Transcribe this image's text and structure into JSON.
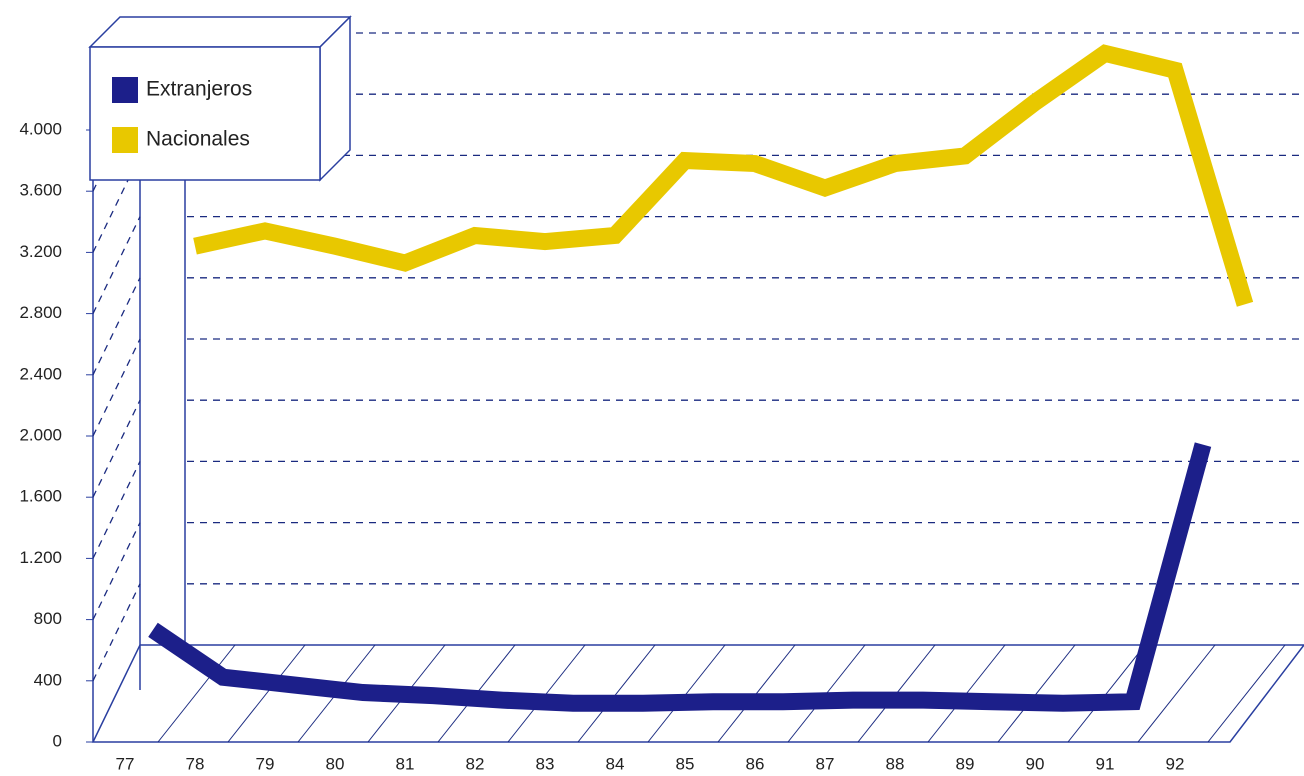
{
  "chart_data": {
    "type": "line",
    "categories": [
      "77",
      "78",
      "79",
      "80",
      "81",
      "82",
      "83",
      "84",
      "85",
      "86",
      "87",
      "88",
      "89",
      "90",
      "91",
      "92"
    ],
    "series": [
      {
        "name": "Extranjeros",
        "color": "#1c1f8a",
        "values": [
          570,
          260,
          210,
          160,
          140,
          110,
          90,
          90,
          100,
          100,
          110,
          110,
          100,
          90,
          100,
          1780
        ]
      },
      {
        "name": "Nacionales",
        "color": "#e8c800",
        "values": [
          2770,
          2870,
          2770,
          2660,
          2840,
          2800,
          2840,
          3330,
          3310,
          3150,
          3310,
          3360,
          3710,
          4030,
          3920,
          2390
        ]
      }
    ],
    "ylim": [
      0,
      4400
    ],
    "yticks": [
      0,
      400,
      800,
      {
        "value": 1200,
        "label": "1.200"
      },
      {
        "value": 1600,
        "label": "1.600"
      },
      {
        "value": 2000,
        "label": "2.000"
      },
      {
        "value": 2400,
        "label": "2.400"
      },
      {
        "value": 2800,
        "label": "2.800"
      },
      {
        "value": 3200,
        "label": "3.200"
      },
      {
        "value": 3600,
        "label": "3.600"
      },
      {
        "value": 4000,
        "label": "4.000"
      }
    ],
    "grid": true
  }
}
